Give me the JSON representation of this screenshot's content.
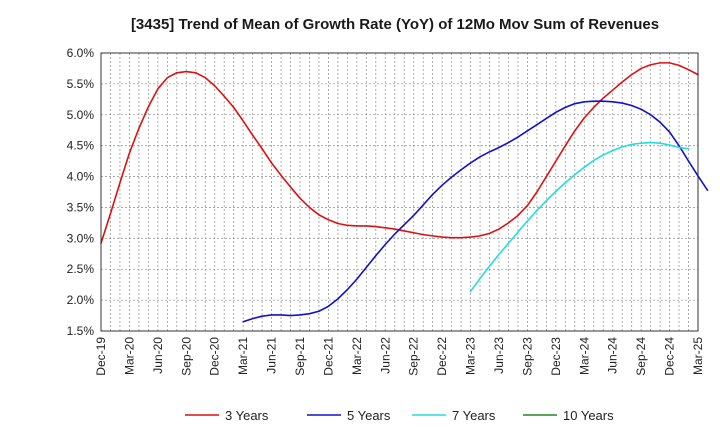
{
  "chart_data": {
    "type": "line",
    "title": "[3435]  Trend of Mean of Growth Rate (YoY) of 12Mo Mov Sum of Revenues",
    "xlabel": "",
    "ylabel": "",
    "ylim": [
      1.5,
      6.0
    ],
    "yticks": [
      "1.5%",
      "2.0%",
      "2.5%",
      "3.0%",
      "3.5%",
      "4.0%",
      "4.5%",
      "5.0%",
      "5.5%",
      "6.0%"
    ],
    "xticks": [
      "Dec-19",
      "Mar-20",
      "Jun-20",
      "Sep-20",
      "Dec-20",
      "Mar-21",
      "Jun-21",
      "Sep-21",
      "Dec-21",
      "Mar-22",
      "Jun-22",
      "Sep-22",
      "Dec-22",
      "Mar-23",
      "Jun-23",
      "Sep-23",
      "Dec-23",
      "Mar-24",
      "Jun-24",
      "Sep-24",
      "Dec-24",
      "Mar-25"
    ],
    "grid": true,
    "legend_position": "bottom",
    "series": [
      {
        "name": "3 Years",
        "color": "#dd1111",
        "start_index": 0,
        "values": [
          2.92,
          3.4,
          3.9,
          4.38,
          4.78,
          5.13,
          5.42,
          5.6,
          5.68,
          5.7,
          5.68,
          5.6,
          5.47,
          5.3,
          5.12,
          4.9,
          4.67,
          4.45,
          4.22,
          4.02,
          3.83,
          3.65,
          3.5,
          3.38,
          3.3,
          3.24,
          3.21,
          3.2,
          3.2,
          3.19,
          3.17,
          3.15,
          3.12,
          3.09,
          3.06,
          3.04,
          3.02,
          3.01,
          3.01,
          3.02,
          3.04,
          3.08,
          3.15,
          3.25,
          3.37,
          3.53,
          3.75,
          4.0,
          4.25,
          4.5,
          4.74,
          4.95,
          5.12,
          5.27,
          5.4,
          5.53,
          5.65,
          5.75,
          5.81,
          5.84,
          5.84,
          5.8,
          5.73,
          5.65
        ]
      },
      {
        "name": "5 Years",
        "color": "#1111cc",
        "start_index": 15,
        "values": [
          1.65,
          1.7,
          1.74,
          1.76,
          1.76,
          1.75,
          1.76,
          1.78,
          1.82,
          1.9,
          2.02,
          2.17,
          2.34,
          2.53,
          2.72,
          2.9,
          3.07,
          3.22,
          3.37,
          3.54,
          3.71,
          3.86,
          3.99,
          4.11,
          4.22,
          4.32,
          4.4,
          4.47,
          4.55,
          4.64,
          4.74,
          4.84,
          4.94,
          5.04,
          5.12,
          5.18,
          5.21,
          5.22,
          5.22,
          5.21,
          5.19,
          5.15,
          5.09,
          5.0,
          4.88,
          4.72,
          4.5,
          4.25,
          4.01,
          3.78
        ]
      },
      {
        "name": "7 Years",
        "color": "#22dddd",
        "start_index": 39,
        "values": [
          2.14,
          2.35,
          2.55,
          2.74,
          2.92,
          3.1,
          3.28,
          3.45,
          3.61,
          3.76,
          3.9,
          4.03,
          4.15,
          4.26,
          4.35,
          4.42,
          4.48,
          4.52,
          4.54,
          4.55,
          4.54,
          4.51,
          4.47,
          4.45
        ]
      },
      {
        "name": "10 Years",
        "color": "#228822",
        "start_index": 0,
        "values": []
      }
    ]
  }
}
